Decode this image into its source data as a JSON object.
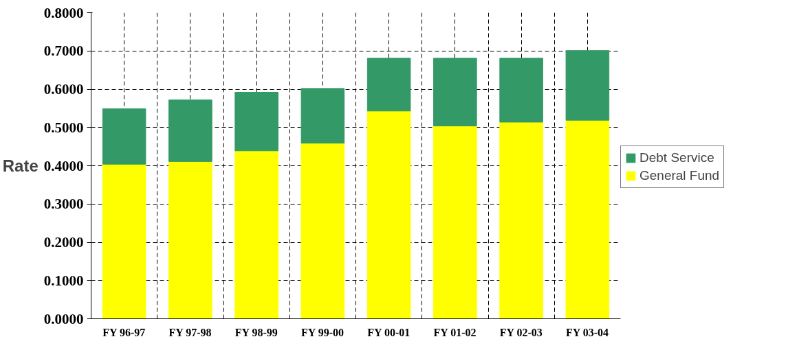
{
  "chart_data": {
    "type": "bar",
    "ylabel": "Rate",
    "stacked": true,
    "grid": true,
    "legend": "right",
    "categories": [
      "FY 96-97",
      "FY 97-98",
      "FY 98-99",
      "FY 99-00",
      "FY 00-01",
      "FY 01-02",
      "FY 02-03",
      "FY 03-04"
    ],
    "series": [
      {
        "name": "General Fund",
        "color": "#ffff00",
        "values": [
          0.404,
          0.411,
          0.439,
          0.459,
          0.543,
          0.504,
          0.514,
          0.519
        ]
      },
      {
        "name": "Debt Service",
        "color": "#339966",
        "values": [
          0.145,
          0.161,
          0.153,
          0.143,
          0.138,
          0.177,
          0.167,
          0.182
        ]
      }
    ],
    "ylim": [
      0,
      0.8
    ],
    "yticks": [
      {
        "value": 0,
        "label": "0.0000"
      },
      {
        "value": 0.1,
        "label": "0.1000"
      },
      {
        "value": 0.2,
        "label": "0.2000"
      },
      {
        "value": 0.3,
        "label": "0.3000"
      },
      {
        "value": 0.4,
        "label": "0.4000"
      },
      {
        "value": 0.5,
        "label": "0.5000"
      },
      {
        "value": 0.6,
        "label": "0.6000"
      },
      {
        "value": 0.7,
        "label": "0.7000"
      },
      {
        "value": 0.8,
        "label": "0.8000"
      }
    ]
  }
}
